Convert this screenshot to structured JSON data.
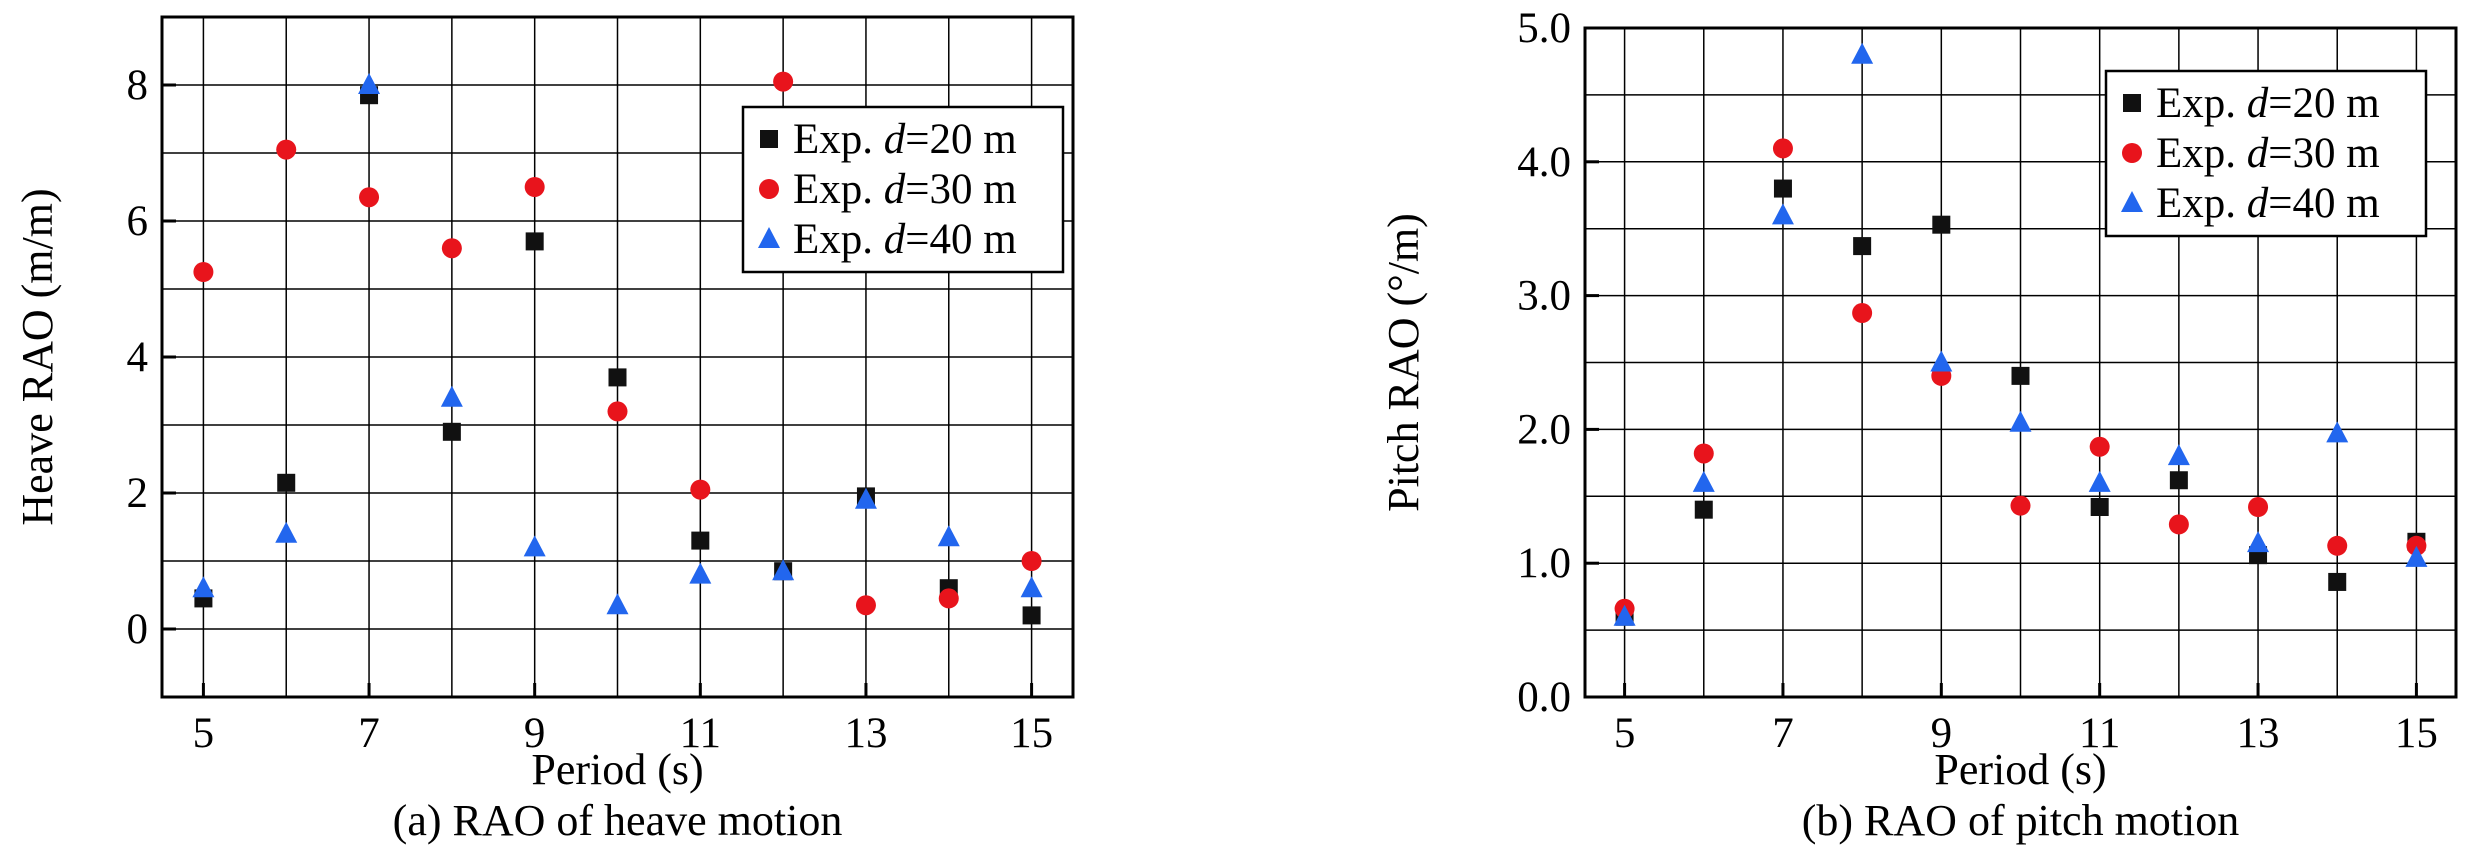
{
  "colors": {
    "d20": "#111111",
    "d30": "#e8141c",
    "d40": "#2266ee",
    "grid": "#000000"
  },
  "chart_data": [
    {
      "type": "scatter",
      "caption": "(a) RAO of heave motion",
      "xlabel": "Period (s)",
      "ylabel": "Heave RAO (m/m)",
      "xlim": [
        4.5,
        15.5
      ],
      "ylim": [
        -1,
        9
      ],
      "xticks": [
        5,
        7,
        9,
        11,
        13,
        15
      ],
      "xtick_labels": [
        "5",
        "7",
        "9",
        "11",
        "13",
        "15"
      ],
      "yticks": [
        0,
        2,
        4,
        6,
        8
      ],
      "ytick_labels": [
        "0",
        "2",
        "4",
        "6",
        "8"
      ],
      "grid": true,
      "legend_position": "top-right",
      "series": [
        {
          "name": "Exp. d=20 m",
          "name_prefix": "Exp. ",
          "name_var": "d",
          "name_suffix": "=20 m",
          "marker": "square",
          "color": "#111111",
          "x": [
            5,
            6,
            7,
            8,
            9,
            10,
            11,
            12,
            13,
            14,
            15
          ],
          "y": [
            0.45,
            2.15,
            7.85,
            2.9,
            5.7,
            3.7,
            1.3,
            0.85,
            1.95,
            0.6,
            0.2
          ]
        },
        {
          "name": "Exp. d=30 m",
          "name_prefix": "Exp. ",
          "name_var": "d",
          "name_suffix": "=30 m",
          "marker": "circle",
          "color": "#e8141c",
          "x": [
            5,
            6,
            7,
            8,
            9,
            10,
            11,
            12,
            13,
            14,
            15
          ],
          "y": [
            5.25,
            7.05,
            6.35,
            5.6,
            6.5,
            3.2,
            2.05,
            8.05,
            0.35,
            0.45,
            1.0
          ]
        },
        {
          "name": "Exp. d=40 m",
          "name_prefix": "Exp. ",
          "name_var": "d",
          "name_suffix": "=40 m",
          "marker": "triangle",
          "color": "#2266ee",
          "x": [
            5,
            6,
            7,
            8,
            9,
            10,
            11,
            12,
            13,
            14,
            15
          ],
          "y": [
            0.6,
            1.4,
            8.0,
            3.4,
            1.2,
            0.35,
            0.8,
            0.85,
            1.9,
            1.35,
            0.6
          ]
        }
      ]
    },
    {
      "type": "scatter",
      "caption": "(b) RAO of pitch motion",
      "xlabel": "Period (s)",
      "ylabel": "Pitch RAO (°/m)",
      "xlim": [
        4.5,
        15.5
      ],
      "ylim": [
        0,
        5
      ],
      "xticks": [
        5,
        7,
        9,
        11,
        13,
        15
      ],
      "xtick_labels": [
        "5",
        "7",
        "9",
        "11",
        "13",
        "15"
      ],
      "yticks": [
        0,
        1,
        2,
        3,
        4,
        5
      ],
      "ytick_labels": [
        "0.0",
        "1.0",
        "2.0",
        "3.0",
        "4.0",
        "5.0"
      ],
      "grid": true,
      "legend_position": "top-right",
      "series": [
        {
          "name": "Exp. d=20 m",
          "name_prefix": "Exp. ",
          "name_var": "d",
          "name_suffix": "=20 m",
          "marker": "square",
          "color": "#111111",
          "x": [
            5,
            6,
            7,
            8,
            9,
            10,
            11,
            12,
            13,
            14,
            15
          ],
          "y": [
            0.6,
            1.4,
            3.8,
            3.37,
            3.53,
            2.4,
            1.42,
            1.62,
            1.06,
            0.86,
            1.16
          ]
        },
        {
          "name": "Exp. d=30 m",
          "name_prefix": "Exp. ",
          "name_var": "d",
          "name_suffix": "=30 m",
          "marker": "circle",
          "color": "#e8141c",
          "x": [
            5,
            6,
            7,
            8,
            9,
            10,
            11,
            12,
            13,
            14,
            15
          ],
          "y": [
            0.66,
            1.82,
            4.1,
            2.87,
            2.4,
            1.43,
            1.87,
            1.29,
            1.42,
            1.13,
            1.13
          ]
        },
        {
          "name": "Exp. d=40 m",
          "name_prefix": "Exp. ",
          "name_var": "d",
          "name_suffix": "=40 m",
          "marker": "triangle",
          "color": "#2266ee",
          "x": [
            5,
            6,
            7,
            8,
            9,
            10,
            11,
            12,
            13,
            14,
            15
          ],
          "y": [
            0.6,
            1.6,
            3.6,
            4.8,
            2.5,
            2.05,
            1.6,
            1.8,
            1.15,
            1.97,
            1.04
          ]
        }
      ]
    }
  ]
}
